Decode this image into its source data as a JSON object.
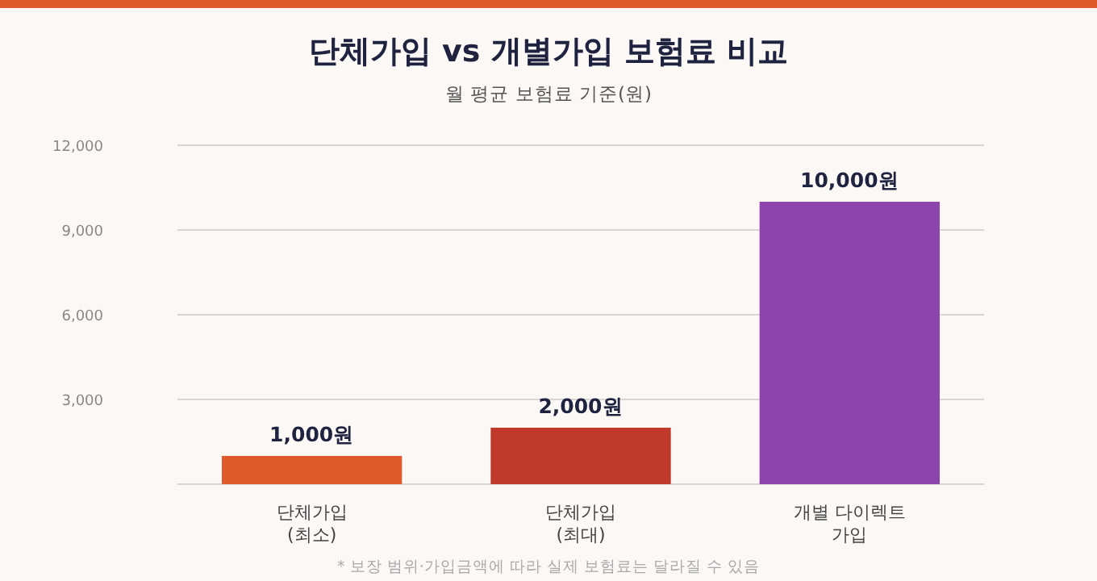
{
  "chart_data": {
    "type": "bar",
    "title": "단체가입 vs 개별가입 보험료 비교",
    "subtitle": "월 평균 보험료 기준(원)",
    "categories": [
      "단체가입\n(최소)",
      "단체가입\n(최대)",
      "개별 다이렉트\n가입"
    ],
    "values": [
      1000,
      2000,
      10000
    ],
    "colors": [
      "#e05a2b",
      "#c0392b",
      "#8e44ad"
    ],
    "value_labels": [
      "1,000원",
      "2,000원",
      "10,000원"
    ],
    "ylim": [
      0,
      12000
    ],
    "yticks": [
      {
        "value": 0,
        "label": null
      },
      {
        "value": 3000,
        "label": "3,000"
      },
      {
        "value": 6000,
        "label": "6,000"
      },
      {
        "value": 9000,
        "label": "9,000"
      },
      {
        "value": 12000,
        "label": "12,000"
      }
    ],
    "grid": "y",
    "annotations": [
      "* 보장 범위·가입금액에 따라 실제 보험료는 달라질 수 있음"
    ]
  }
}
